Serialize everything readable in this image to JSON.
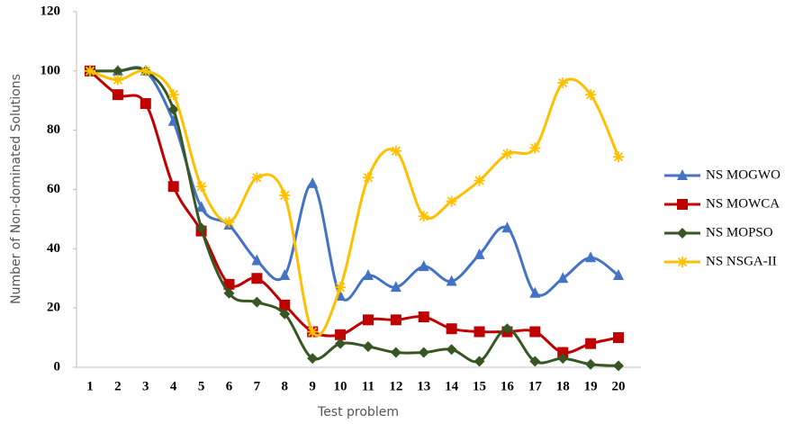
{
  "chart_data": {
    "type": "line",
    "x_label": "Test problem",
    "y_label": "Number of Non-dominated Solutions",
    "categories": [
      "1",
      "2",
      "3",
      "4",
      "5",
      "6",
      "7",
      "8",
      "9",
      "10",
      "11",
      "12",
      "13",
      "14",
      "15",
      "16",
      "17",
      "18",
      "19",
      "20"
    ],
    "ylim": [
      0,
      120
    ],
    "yticks": [
      0,
      20,
      40,
      60,
      80,
      100,
      120
    ],
    "series": [
      {
        "name": "NS MOGWO",
        "color": "#4472c4",
        "marker": "triangle",
        "values": [
          100,
          100,
          100,
          83,
          54,
          48,
          36,
          31,
          62,
          24,
          31,
          27,
          34,
          29,
          38,
          47,
          25,
          30,
          37,
          31
        ]
      },
      {
        "name": "NS MOWCA",
        "color": "#c00000",
        "marker": "square",
        "values": [
          100,
          92,
          89,
          61,
          46,
          28,
          30,
          21,
          12,
          11,
          16,
          16,
          17,
          13,
          12,
          12,
          12,
          5,
          8,
          10
        ]
      },
      {
        "name": "NS MOPSO",
        "color": "#375623",
        "marker": "diamond",
        "values": [
          100,
          100,
          100,
          87,
          47,
          25,
          22,
          18,
          3,
          8,
          7,
          5,
          5,
          6,
          2,
          13,
          2,
          3,
          1,
          0.5
        ]
      },
      {
        "name": "NS NSGA-II",
        "color": "#ffc000",
        "marker": "asterisk",
        "values": [
          100,
          97,
          100,
          92,
          61,
          49,
          64,
          58,
          12,
          27,
          64,
          73,
          51,
          56,
          63,
          72,
          74,
          96,
          92,
          71
        ]
      }
    ]
  }
}
